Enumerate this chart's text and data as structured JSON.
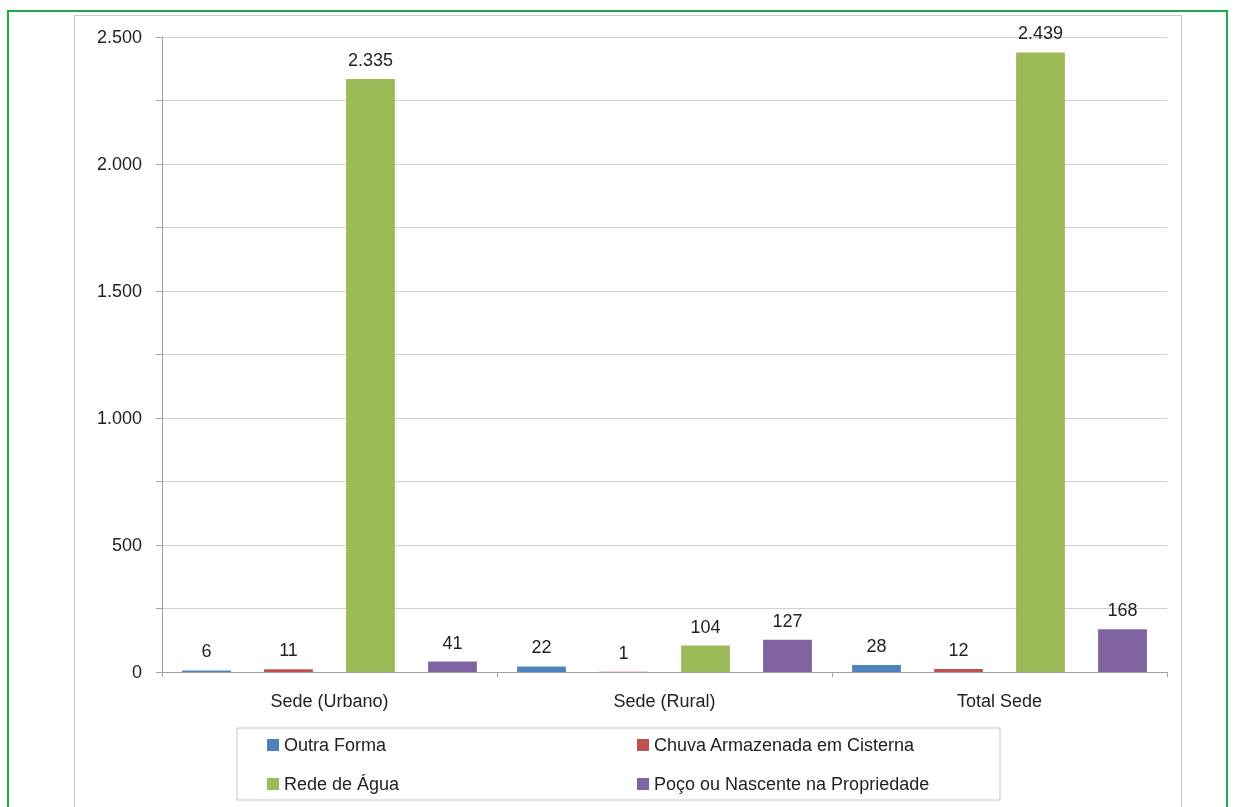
{
  "chart_data": {
    "type": "bar",
    "categories": [
      "Sede (Urbano)",
      "Sede (Rural)",
      "Total Sede"
    ],
    "series": [
      {
        "name": "Outra Forma",
        "color": "#4f81bd",
        "values": [
          6,
          22,
          28
        ],
        "value_labels": [
          "6",
          "22",
          "28"
        ]
      },
      {
        "name": "Chuva Armazenada em Cisterna",
        "color": "#c0504d",
        "values": [
          11,
          1,
          12
        ],
        "value_labels": [
          "11",
          "1",
          "12"
        ]
      },
      {
        "name": "Rede de Água",
        "color": "#9bbb59",
        "values": [
          2335,
          104,
          2439
        ],
        "value_labels": [
          "2.335",
          "104",
          "2.439"
        ]
      },
      {
        "name": "Poço ou Nascente na Propriedade",
        "color": "#8064a2",
        "values": [
          41,
          127,
          168
        ],
        "value_labels": [
          "41",
          "127",
          "168"
        ]
      }
    ],
    "ylim": [
      0,
      2500
    ],
    "yticks": [
      0,
      {
        "value": 250,
        "label": null
      },
      {
        "value": 500,
        "label": "500"
      },
      {
        "value": 750,
        "label": null
      },
      {
        "value": 1000,
        "label": "1.000"
      },
      {
        "value": 1250,
        "label": null
      },
      {
        "value": 1500,
        "label": "1.500"
      },
      {
        "value": 1750,
        "label": null
      },
      {
        "value": 2000,
        "label": "2.000"
      },
      {
        "value": 2250,
        "label": null
      },
      {
        "value": 2500,
        "label": "2.500"
      }
    ],
    "grid": "y",
    "legend": "bottom"
  }
}
